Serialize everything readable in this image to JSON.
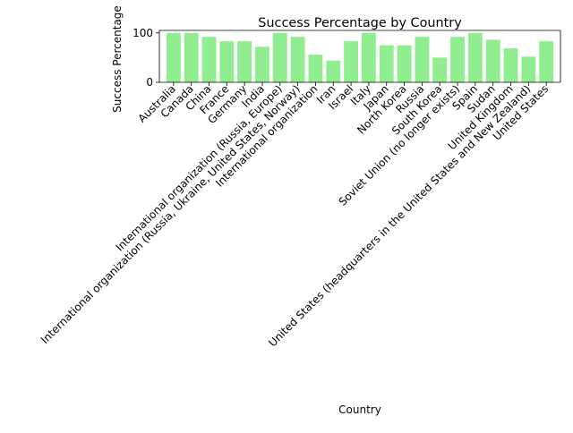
{
  "chart_data": {
    "type": "bar",
    "title": "Success Percentage by Country",
    "xlabel": "Country",
    "ylabel": "Success Percentage",
    "ylim": [
      0,
      105
    ],
    "yticks": [
      0,
      100
    ],
    "grid": false,
    "bar_color": "#90ee90",
    "categories": [
      "Australia",
      "Canada",
      "China",
      "France",
      "Germany",
      "India",
      "International organization (Russia, Europe)",
      "International organization (Russia, Ukraine, United States, Norway)",
      "International organization",
      "Iran",
      "Israel",
      "Italy",
      "Japan",
      "North Korea",
      "Russia",
      "South Korea",
      "Soviet Union (no longer exists)",
      "Spain",
      "Sudan",
      "United Kingdom",
      "United States (headquarters in the United States and New Zealand)",
      "United States"
    ],
    "values": [
      100,
      100,
      92,
      83,
      83,
      72,
      100,
      92,
      56,
      44,
      83,
      100,
      75,
      75,
      92,
      50,
      92,
      100,
      86,
      69,
      52,
      83
    ]
  }
}
